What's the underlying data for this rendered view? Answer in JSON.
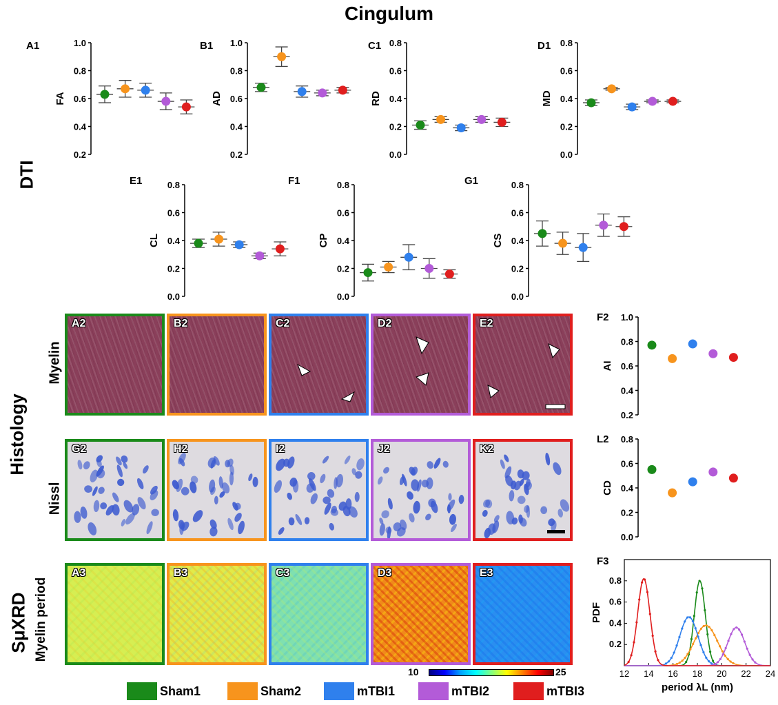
{
  "title": "Cingulum",
  "row_labels": {
    "dti": "DTI",
    "histology": "Histology",
    "myelin": "Myelin",
    "nissl": "Nissl",
    "sxrd": "SμXRD",
    "myelin_period": "Myelin period"
  },
  "colors": {
    "Sham1": "#1a8a1a",
    "Sham2": "#f7941d",
    "mTBI1": "#2f80ed",
    "mTBI2": "#b35bd8",
    "mTBI3": "#e01e1e"
  },
  "legend": [
    "Sham1",
    "Sham2",
    "mTBI1",
    "mTBI2",
    "mTBI3"
  ],
  "colorbar": {
    "min_label": "10",
    "max_label": "25"
  },
  "tile_labels": {
    "myelin": [
      "A2",
      "B2",
      "C2",
      "D2",
      "E2"
    ],
    "nissl": [
      "G2",
      "H2",
      "I2",
      "J2",
      "K2"
    ],
    "xrd": [
      "A3",
      "B3",
      "C3",
      "D3",
      "E3"
    ]
  },
  "chart_data": [
    {
      "id": "A1",
      "type": "scatter",
      "ylabel": "FA",
      "ylim": [
        0.2,
        1.0
      ],
      "yticks": [
        "0.2",
        "0.4",
        "0.6",
        "0.8",
        "1.0"
      ],
      "values": [
        0.63,
        0.67,
        0.66,
        0.58,
        0.54
      ],
      "errors": [
        0.06,
        0.06,
        0.05,
        0.06,
        0.05
      ]
    },
    {
      "id": "B1",
      "type": "scatter",
      "ylabel": "AD",
      "ylim": [
        0.2,
        1.0
      ],
      "yticks": [
        "0.2",
        "0.4",
        "0.6",
        "0.8",
        "1.0"
      ],
      "values": [
        0.68,
        0.9,
        0.65,
        0.64,
        0.66
      ],
      "errors": [
        0.03,
        0.07,
        0.04,
        0.02,
        0.02
      ]
    },
    {
      "id": "C1",
      "type": "scatter",
      "ylabel": "RD",
      "ylim": [
        0.0,
        0.8
      ],
      "yticks": [
        "0.0",
        "0.2",
        "0.4",
        "0.6",
        "0.8"
      ],
      "values": [
        0.21,
        0.25,
        0.19,
        0.25,
        0.23
      ],
      "errors": [
        0.03,
        0.02,
        0.02,
        0.02,
        0.03
      ]
    },
    {
      "id": "D1",
      "type": "scatter",
      "ylabel": "MD",
      "ylim": [
        0.0,
        0.8
      ],
      "yticks": [
        "0.0",
        "0.2",
        "0.4",
        "0.6",
        "0.8"
      ],
      "values": [
        0.37,
        0.47,
        0.34,
        0.38,
        0.38
      ],
      "errors": [
        0.02,
        0.01,
        0.02,
        0.01,
        0.01
      ]
    },
    {
      "id": "E1",
      "type": "scatter",
      "ylabel": "CL",
      "ylim": [
        0.0,
        0.8
      ],
      "yticks": [
        "0.0",
        "0.2",
        "0.4",
        "0.6",
        "0.8"
      ],
      "values": [
        0.38,
        0.41,
        0.37,
        0.29,
        0.34
      ],
      "errors": [
        0.03,
        0.05,
        0.02,
        0.02,
        0.05
      ]
    },
    {
      "id": "F1",
      "type": "scatter",
      "ylabel": "CP",
      "ylim": [
        0.0,
        0.8
      ],
      "yticks": [
        "0.0",
        "0.2",
        "0.4",
        "0.6",
        "0.8"
      ],
      "values": [
        0.17,
        0.21,
        0.28,
        0.2,
        0.16
      ],
      "errors": [
        0.06,
        0.04,
        0.09,
        0.07,
        0.03
      ]
    },
    {
      "id": "G1",
      "type": "scatter",
      "ylabel": "CS",
      "ylim": [
        0.0,
        0.8
      ],
      "yticks": [
        "0.0",
        "0.2",
        "0.4",
        "0.6",
        "0.8"
      ],
      "values": [
        0.45,
        0.38,
        0.35,
        0.51,
        0.5
      ],
      "errors": [
        0.09,
        0.08,
        0.1,
        0.08,
        0.07
      ]
    },
    {
      "id": "F2",
      "type": "scatter",
      "ylabel": "AI",
      "ylim": [
        0.2,
        1.0
      ],
      "yticks": [
        "0.2",
        "0.4",
        "0.6",
        "0.8",
        "1.0"
      ],
      "values": [
        0.77,
        0.66,
        0.78,
        0.7,
        0.67
      ]
    },
    {
      "id": "L2",
      "type": "scatter",
      "ylabel": "CD",
      "ylim": [
        0.0,
        0.8
      ],
      "yticks": [
        "0.0",
        "0.2",
        "0.4",
        "0.6",
        "0.8"
      ],
      "values": [
        0.55,
        0.36,
        0.45,
        0.53,
        0.48
      ]
    },
    {
      "id": "F3",
      "type": "line",
      "xlabel": "period λL (nm)",
      "ylabel": "PDF",
      "xlim": [
        12,
        24
      ],
      "ylim": [
        0,
        1.0
      ],
      "xticks": [
        "12",
        "14",
        "16",
        "18",
        "20",
        "22",
        "24"
      ],
      "yticks": [
        "0.2",
        "0.4",
        "0.6",
        "0.8"
      ],
      "series": [
        {
          "name": "Sham1",
          "mu": 18.2,
          "sigma": 0.45,
          "peak": 0.8
        },
        {
          "name": "Sham2",
          "mu": 18.7,
          "sigma": 0.95,
          "peak": 0.38
        },
        {
          "name": "mTBI1",
          "mu": 17.3,
          "sigma": 0.75,
          "peak": 0.46
        },
        {
          "name": "mTBI2",
          "mu": 21.2,
          "sigma": 0.7,
          "peak": 0.36
        },
        {
          "name": "mTBI3",
          "mu": 13.6,
          "sigma": 0.5,
          "peak": 0.82
        }
      ]
    }
  ]
}
